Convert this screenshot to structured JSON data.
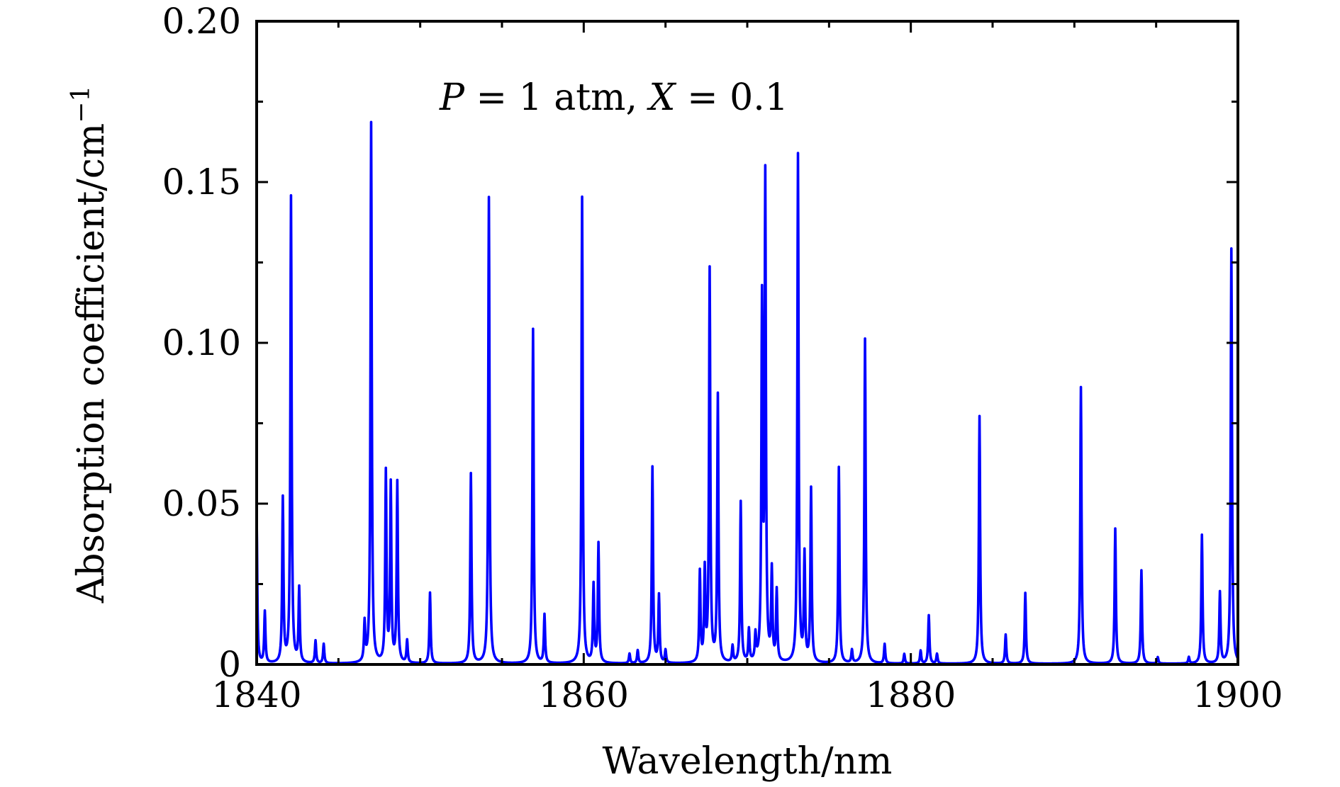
{
  "chart_data": {
    "type": "line",
    "title": "",
    "xlabel": "Wavelength/nm",
    "ylabel": "Absorption coefficient/cm",
    "ylabel_unit_exponent": "−1",
    "annotation": "P = 1 atm, X = 0.1",
    "xlim": [
      1840,
      1900
    ],
    "ylim": [
      0,
      0.2
    ],
    "x_ticks": [
      1840,
      1860,
      1880,
      1900
    ],
    "x_tick_labels": [
      "1840",
      "1860",
      "1880",
      "1900"
    ],
    "y_ticks": [
      0,
      0.05,
      0.1,
      0.15,
      0.2
    ],
    "y_tick_labels": [
      "0",
      "0.05",
      "0.10",
      "0.15",
      "0.20"
    ],
    "grid": false,
    "line_color": "#0000ff",
    "peaks": [
      {
        "x": 1840.0,
        "y": 0.045
      },
      {
        "x": 1840.5,
        "y": 0.016
      },
      {
        "x": 1841.6,
        "y": 0.051
      },
      {
        "x": 1842.1,
        "y": 0.145
      },
      {
        "x": 1842.6,
        "y": 0.023
      },
      {
        "x": 1843.6,
        "y": 0.007
      },
      {
        "x": 1844.1,
        "y": 0.006
      },
      {
        "x": 1846.6,
        "y": 0.012
      },
      {
        "x": 1847.0,
        "y": 0.168
      },
      {
        "x": 1847.9,
        "y": 0.059
      },
      {
        "x": 1848.2,
        "y": 0.055
      },
      {
        "x": 1848.6,
        "y": 0.056
      },
      {
        "x": 1849.2,
        "y": 0.007
      },
      {
        "x": 1850.6,
        "y": 0.022
      },
      {
        "x": 1853.1,
        "y": 0.059
      },
      {
        "x": 1854.2,
        "y": 0.145
      },
      {
        "x": 1856.9,
        "y": 0.104
      },
      {
        "x": 1857.6,
        "y": 0.015
      },
      {
        "x": 1859.9,
        "y": 0.145
      },
      {
        "x": 1860.6,
        "y": 0.024
      },
      {
        "x": 1860.9,
        "y": 0.037
      },
      {
        "x": 1862.8,
        "y": 0.003
      },
      {
        "x": 1863.3,
        "y": 0.004
      },
      {
        "x": 1864.2,
        "y": 0.061
      },
      {
        "x": 1864.6,
        "y": 0.021
      },
      {
        "x": 1865.0,
        "y": 0.004
      },
      {
        "x": 1867.1,
        "y": 0.028
      },
      {
        "x": 1867.4,
        "y": 0.028
      },
      {
        "x": 1867.7,
        "y": 0.122
      },
      {
        "x": 1868.2,
        "y": 0.083
      },
      {
        "x": 1869.1,
        "y": 0.005
      },
      {
        "x": 1869.6,
        "y": 0.05
      },
      {
        "x": 1870.1,
        "y": 0.01
      },
      {
        "x": 1870.5,
        "y": 0.008
      },
      {
        "x": 1870.9,
        "y": 0.11
      },
      {
        "x": 1871.1,
        "y": 0.149
      },
      {
        "x": 1871.5,
        "y": 0.028
      },
      {
        "x": 1871.8,
        "y": 0.022
      },
      {
        "x": 1873.1,
        "y": 0.158
      },
      {
        "x": 1873.5,
        "y": 0.033
      },
      {
        "x": 1873.9,
        "y": 0.054
      },
      {
        "x": 1875.6,
        "y": 0.061
      },
      {
        "x": 1876.4,
        "y": 0.004
      },
      {
        "x": 1877.2,
        "y": 0.101
      },
      {
        "x": 1878.4,
        "y": 0.006
      },
      {
        "x": 1879.6,
        "y": 0.003
      },
      {
        "x": 1880.6,
        "y": 0.004
      },
      {
        "x": 1881.1,
        "y": 0.015
      },
      {
        "x": 1881.6,
        "y": 0.003
      },
      {
        "x": 1884.2,
        "y": 0.077
      },
      {
        "x": 1885.8,
        "y": 0.009
      },
      {
        "x": 1887.0,
        "y": 0.022
      },
      {
        "x": 1890.4,
        "y": 0.086
      },
      {
        "x": 1892.5,
        "y": 0.042
      },
      {
        "x": 1894.1,
        "y": 0.029
      },
      {
        "x": 1895.1,
        "y": 0.002
      },
      {
        "x": 1897.0,
        "y": 0.002
      },
      {
        "x": 1897.8,
        "y": 0.04
      },
      {
        "x": 1898.9,
        "y": 0.022
      },
      {
        "x": 1899.6,
        "y": 0.129
      }
    ]
  }
}
